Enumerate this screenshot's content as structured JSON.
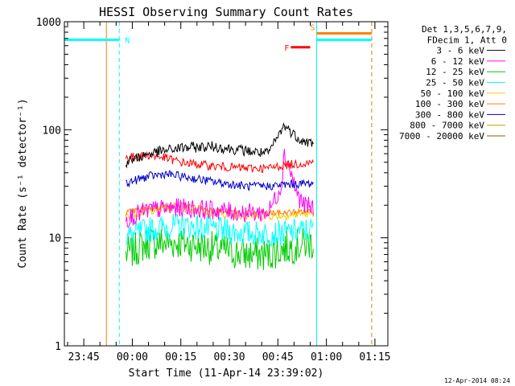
{
  "footer_timestamp": "12-Apr-2014 08:24",
  "chart_data": {
    "type": "line",
    "title": "HESSI Observing Summary Count Rates",
    "xlabel": "Start Time (11-Apr-14 23:39:02)",
    "ylabel": "Count Rate (s⁻¹ detector⁻¹)",
    "y_scale": "log",
    "ylim": [
      1,
      1000
    ],
    "y_ticks": [
      {
        "value": 1,
        "label": "1"
      },
      {
        "value": 10,
        "label": "10"
      },
      {
        "value": 100,
        "label": "100"
      },
      {
        "value": 1000,
        "label": "1000"
      }
    ],
    "xlim": [
      "23:39",
      "01:19"
    ],
    "x_ticks": [
      {
        "value": "23:45",
        "label": "23:45"
      },
      {
        "value": "00:00",
        "label": "00:00"
      },
      {
        "value": "00:15",
        "label": "00:15"
      },
      {
        "value": "00:30",
        "label": "00:30"
      },
      {
        "value": "00:45",
        "label": "00:45"
      },
      {
        "value": "01:00",
        "label": "01:00"
      },
      {
        "value": "01:15",
        "label": "01:15"
      }
    ],
    "legend_header": [
      "Det 1,3,5,6,7,9,",
      "FDecim 1, Att 0"
    ],
    "legend_placement": "right",
    "series": [
      {
        "name": "3 - 6 keV",
        "color": "#000000",
        "x": [
          "23:58",
          "00:05",
          "00:15",
          "00:25",
          "00:35",
          "00:42",
          "00:47",
          "00:50",
          "00:53",
          "00:56"
        ],
        "values": [
          50,
          60,
          68,
          70,
          64,
          60,
          110,
          90,
          78,
          75
        ]
      },
      {
        "name": "6 - 12 keV",
        "color": "#ff00ff",
        "x": [
          "23:58",
          "00:05",
          "00:15",
          "00:25",
          "00:35",
          "00:42",
          "00:46",
          "00:47",
          "00:49",
          "00:51",
          "00:53",
          "00:56"
        ],
        "values": [
          15,
          18,
          19,
          18,
          17,
          17,
          30,
          60,
          40,
          25,
          20,
          19
        ]
      },
      {
        "name": "12 - 25 keV",
        "color": "#00cc00",
        "x": [
          "23:58",
          "00:05",
          "00:15",
          "00:25",
          "00:35",
          "00:42",
          "00:47",
          "00:56"
        ],
        "values": [
          7,
          9,
          9,
          8,
          7,
          7,
          8,
          9
        ]
      },
      {
        "name": "25 - 50 keV",
        "color": "#00ffff",
        "x": [
          "23:58",
          "00:05",
          "00:15",
          "00:25",
          "00:35",
          "00:42",
          "00:47",
          "00:56"
        ],
        "values": [
          10,
          12,
          13,
          12,
          11,
          11,
          11,
          12
        ]
      },
      {
        "name": "50 - 100 keV",
        "color": "#ffcc00",
        "x": [
          "23:58",
          "00:05",
          "00:15",
          "00:25",
          "00:35",
          "00:42",
          "00:47",
          "00:56"
        ],
        "values": [
          16,
          18,
          19,
          17,
          16,
          16,
          16,
          17
        ]
      },
      {
        "name": "100 - 300 keV",
        "color": "#ff8000",
        "x": [
          "23:58",
          "00:05",
          "00:15",
          "00:25",
          "00:35",
          "00:42",
          "00:47",
          "00:56"
        ],
        "values": [
          17,
          19,
          20,
          18,
          17,
          17,
          17,
          18
        ]
      },
      {
        "name": "300 - 800 keV",
        "color": "#0000cc",
        "x": [
          "23:58",
          "00:05",
          "00:10",
          "00:15",
          "00:25",
          "00:35",
          "00:42",
          "00:47",
          "00:56"
        ],
        "values": [
          32,
          37,
          39,
          37,
          33,
          30,
          30,
          31,
          32
        ]
      },
      {
        "name": "800 - 7000 keV",
        "color": "#cc9900",
        "x": [],
        "values": []
      },
      {
        "name": "7000 - 20000 keV",
        "color": "#806600",
        "x": [],
        "values": []
      },
      {
        "name": "",
        "color": "#ff0000",
        "x": [
          "23:58",
          "00:05",
          "00:10",
          "00:15",
          "00:25",
          "00:35",
          "00:42",
          "00:47",
          "00:56"
        ],
        "values": [
          55,
          58,
          55,
          50,
          46,
          44,
          44,
          47,
          50
        ]
      }
    ],
    "flags": [
      {
        "label": "N",
        "color": "#00ffff",
        "x": [
          "23:39",
          "23:56"
        ],
        "level": 680
      },
      {
        "label": "F",
        "color": "#ff0000",
        "x": [
          "00:49",
          "00:55"
        ],
        "level": 580
      },
      {
        "label": "S",
        "color": "#ff8000",
        "x": [
          "00:57",
          "01:14"
        ],
        "level": 780
      },
      {
        "label": "",
        "color": "#00ffff",
        "x": [
          "00:57",
          "01:14"
        ],
        "level": 680
      }
    ],
    "vertical_lines": [
      {
        "x": "23:39",
        "color": "#00ffff",
        "style": "solid"
      },
      {
        "x": "23:56",
        "color": "#00ffff",
        "style": "dashed"
      },
      {
        "x": "23:52",
        "color": "#ff8000",
        "style": "solid"
      },
      {
        "x": "00:57",
        "color": "#ff8000",
        "style": "solid"
      },
      {
        "x": "00:57",
        "color": "#00ffff",
        "style": "solid"
      },
      {
        "x": "01:14",
        "color": "#00ffff",
        "style": "dashed"
      },
      {
        "x": "01:14",
        "color": "#ff8000",
        "style": "dashed"
      }
    ]
  }
}
